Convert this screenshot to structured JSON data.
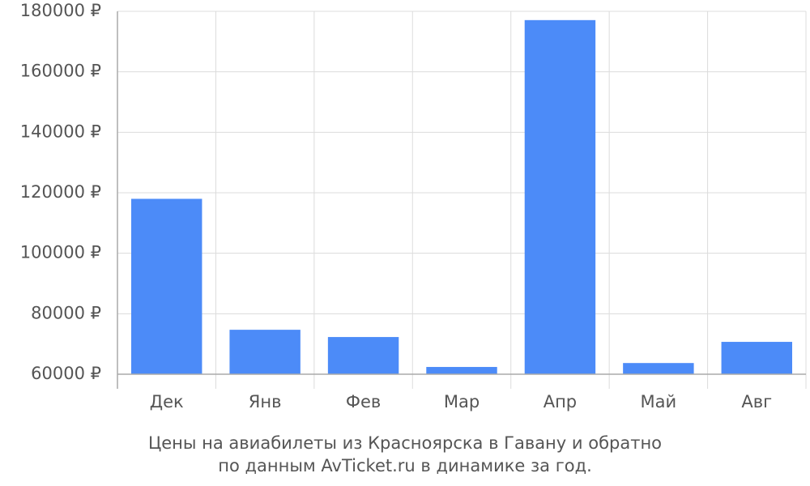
{
  "chart_data": {
    "type": "bar",
    "title": [
      "Цены на авиабилеты из Красноярска в Гавану и обратно",
      "по данным AvTicket.ru в динамике за год."
    ],
    "categories": [
      "Дек",
      "Янв",
      "Фев",
      "Мар",
      "Апр",
      "Май",
      "Авг"
    ],
    "values": [
      118000,
      74700,
      72300,
      62400,
      177100,
      63700,
      70700
    ],
    "color": "#4c8bf8",
    "ylim": [
      60000,
      180000
    ],
    "yticks": [
      {
        "value": 60000,
        "label": "60000 ₽"
      },
      {
        "value": 80000,
        "label": "80000 ₽"
      },
      {
        "value": 100000,
        "label": "100000 ₽"
      },
      {
        "value": 120000,
        "label": "120000 ₽"
      },
      {
        "value": 140000,
        "label": "140000 ₽"
      },
      {
        "value": 160000,
        "label": "160000 ₽"
      },
      {
        "value": 180000,
        "label": "180000 ₽"
      }
    ],
    "grid": true
  }
}
